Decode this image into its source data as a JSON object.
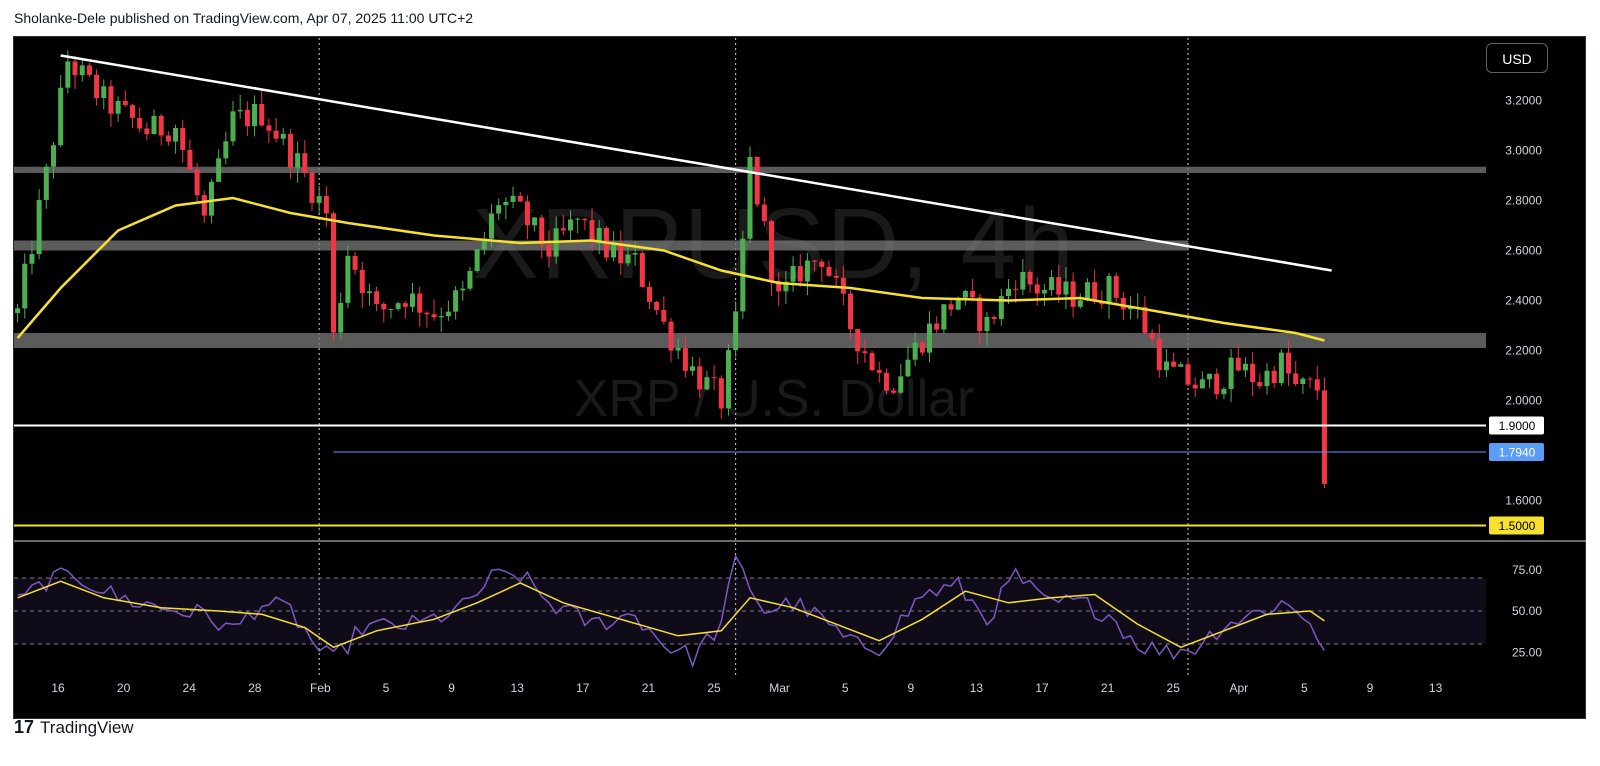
{
  "header": {
    "text": "Sholanke-Dele published on TradingView.com, Apr 07, 2025 11:00 UTC+2"
  },
  "footer": {
    "brand": "TradingView",
    "mark": "17"
  },
  "currency_button": "USD",
  "watermark": {
    "title": "XRPUSD, 4h",
    "subtitle": "XRP / U.S. Dollar"
  },
  "colors": {
    "background": "#000000",
    "candle_up": "#4caf50",
    "candle_down": "#f23645",
    "moving_average": "#f5e12e",
    "trendline": "#ffffff",
    "zone": "#7a7a7a",
    "rsi_line": "#7e57c2",
    "rsi_ma": "#f5e12e",
    "level_blue": "#5b9cf6",
    "level_yellow": "#f5e12e"
  },
  "chart_data": [
    {
      "type": "candlestick",
      "symbol": "XRPUSD",
      "timeframe": "4h",
      "y_range": [
        1.45,
        3.45
      ],
      "y_ticks": [
        "3.2000",
        "3.0000",
        "2.8000",
        "2.6000",
        "2.4000",
        "2.2000",
        "2.0000",
        "1.6000"
      ],
      "x_ticks": [
        "16",
        "20",
        "24",
        "28",
        "Feb",
        "5",
        "9",
        "13",
        "17",
        "21",
        "25",
        "Mar",
        "5",
        "9",
        "13",
        "17",
        "21",
        "25",
        "Apr",
        "5",
        "9",
        "13"
      ],
      "x_vertical_markers": [
        "Feb",
        "Mar",
        "Apr"
      ],
      "close_anchors": [
        [
          0,
          2.35
        ],
        [
          4,
          2.9
        ],
        [
          7,
          3.36
        ],
        [
          12,
          3.2
        ],
        [
          18,
          3.08
        ],
        [
          22,
          3.1
        ],
        [
          26,
          2.72
        ],
        [
          30,
          3.12
        ],
        [
          34,
          3.15
        ],
        [
          39,
          2.95
        ],
        [
          43,
          2.75
        ],
        [
          44,
          2.25
        ],
        [
          46,
          2.6
        ],
        [
          50,
          2.35
        ],
        [
          54,
          2.42
        ],
        [
          58,
          2.35
        ],
        [
          62,
          2.42
        ],
        [
          67,
          2.8
        ],
        [
          70,
          2.75
        ],
        [
          74,
          2.6
        ],
        [
          78,
          2.72
        ],
        [
          83,
          2.58
        ],
        [
          86,
          2.55
        ],
        [
          90,
          2.3
        ],
        [
          94,
          2.12
        ],
        [
          98,
          2.0
        ],
        [
          100,
          2.3
        ],
        [
          102,
          2.95
        ],
        [
          106,
          2.4
        ],
        [
          109,
          2.52
        ],
        [
          112,
          2.58
        ],
        [
          116,
          2.3
        ],
        [
          120,
          2.1
        ],
        [
          122,
          2.08
        ],
        [
          126,
          2.25
        ],
        [
          131,
          2.42
        ],
        [
          135,
          2.3
        ],
        [
          139,
          2.5
        ],
        [
          142,
          2.45
        ],
        [
          147,
          2.42
        ],
        [
          152,
          2.45
        ],
        [
          156,
          2.35
        ],
        [
          160,
          2.12
        ],
        [
          165,
          2.05
        ],
        [
          170,
          2.13
        ],
        [
          173,
          2.08
        ],
        [
          176,
          2.15
        ],
        [
          178,
          2.05
        ],
        [
          181,
          2.05
        ],
        [
          182,
          1.7
        ]
      ],
      "moving_average_anchors": [
        [
          0,
          2.25
        ],
        [
          6,
          2.45
        ],
        [
          14,
          2.68
        ],
        [
          22,
          2.78
        ],
        [
          30,
          2.81
        ],
        [
          38,
          2.75
        ],
        [
          46,
          2.71
        ],
        [
          58,
          2.66
        ],
        [
          70,
          2.63
        ],
        [
          80,
          2.64
        ],
        [
          90,
          2.6
        ],
        [
          98,
          2.52
        ],
        [
          106,
          2.47
        ],
        [
          116,
          2.45
        ],
        [
          126,
          2.41
        ],
        [
          138,
          2.4
        ],
        [
          148,
          2.41
        ],
        [
          158,
          2.36
        ],
        [
          168,
          2.31
        ],
        [
          178,
          2.27
        ],
        [
          182,
          2.24
        ]
      ],
      "trendline": {
        "from": [
          6,
          3.38
        ],
        "to": [
          183,
          2.52
        ]
      },
      "resistance_zones": [
        {
          "top": 2.935,
          "bottom": 2.91
        },
        {
          "top": 2.64,
          "bottom": 2.6
        },
        {
          "top": 2.27,
          "bottom": 2.21
        }
      ],
      "horizontal_levels": [
        {
          "price": 1.9,
          "label": "1.9000",
          "color": "#ffffff"
        },
        {
          "price": 1.794,
          "label": "1.7940",
          "color": "#5b9cf6"
        },
        {
          "price": 1.5,
          "label": "1.5000",
          "color": "#f5e12e"
        }
      ]
    },
    {
      "type": "line",
      "indicator": "RSI",
      "y_range": [
        10,
        90
      ],
      "y_ticks": [
        "75.00",
        "50.00",
        "25.00"
      ],
      "band": [
        30,
        70
      ],
      "rsi_anchors": [
        [
          0,
          55
        ],
        [
          4,
          68
        ],
        [
          8,
          72
        ],
        [
          14,
          58
        ],
        [
          20,
          52
        ],
        [
          26,
          48
        ],
        [
          30,
          38
        ],
        [
          34,
          55
        ],
        [
          38,
          50
        ],
        [
          42,
          26
        ],
        [
          44,
          20
        ],
        [
          48,
          40
        ],
        [
          56,
          42
        ],
        [
          62,
          52
        ],
        [
          66,
          70
        ],
        [
          70,
          72
        ],
        [
          74,
          55
        ],
        [
          80,
          42
        ],
        [
          86,
          48
        ],
        [
          90,
          30
        ],
        [
          94,
          22
        ],
        [
          98,
          42
        ],
        [
          100,
          80
        ],
        [
          104,
          50
        ],
        [
          108,
          55
        ],
        [
          112,
          45
        ],
        [
          116,
          30
        ],
        [
          120,
          28
        ],
        [
          126,
          60
        ],
        [
          131,
          65
        ],
        [
          135,
          45
        ],
        [
          139,
          72
        ],
        [
          143,
          55
        ],
        [
          148,
          55
        ],
        [
          152,
          48
        ],
        [
          156,
          30
        ],
        [
          160,
          25
        ],
        [
          164,
          28
        ],
        [
          168,
          42
        ],
        [
          172,
          48
        ],
        [
          176,
          55
        ],
        [
          180,
          45
        ],
        [
          182,
          25
        ]
      ],
      "rsi_ma_anchors": [
        [
          0,
          58
        ],
        [
          6,
          68
        ],
        [
          12,
          58
        ],
        [
          20,
          52
        ],
        [
          28,
          50
        ],
        [
          34,
          48
        ],
        [
          40,
          40
        ],
        [
          44,
          28
        ],
        [
          50,
          38
        ],
        [
          58,
          45
        ],
        [
          64,
          55
        ],
        [
          70,
          67
        ],
        [
          76,
          55
        ],
        [
          84,
          45
        ],
        [
          92,
          35
        ],
        [
          98,
          38
        ],
        [
          102,
          58
        ],
        [
          108,
          52
        ],
        [
          114,
          42
        ],
        [
          120,
          32
        ],
        [
          126,
          45
        ],
        [
          132,
          62
        ],
        [
          138,
          55
        ],
        [
          144,
          58
        ],
        [
          150,
          60
        ],
        [
          156,
          42
        ],
        [
          162,
          28
        ],
        [
          168,
          38
        ],
        [
          174,
          48
        ],
        [
          180,
          50
        ],
        [
          182,
          44
        ]
      ]
    }
  ]
}
